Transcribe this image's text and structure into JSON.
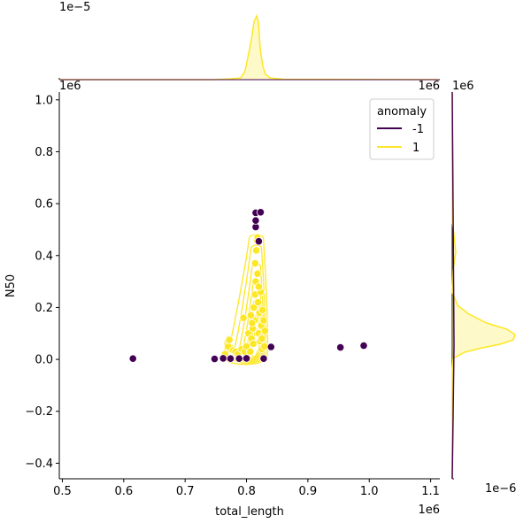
{
  "chart_data": {
    "type": "scatter",
    "subtype": "jointplot-kde-scatter",
    "xlabel": "total_length",
    "ylabel": "N50",
    "x_offset_label": "1e6",
    "y_offset_label": "1e6",
    "top_marginal_offset_label": "1e−5",
    "right_marginal_offset_label": "1e6",
    "right_marginal_bottom_offset_label": "1e−6",
    "xlim": [
      0.495,
      1.115
    ],
    "ylim": [
      -0.46,
      1.03
    ],
    "x_ticks": [
      0.5,
      0.6,
      0.7,
      0.8,
      0.9,
      1.0,
      1.1
    ],
    "x_tick_labels": [
      "0.5",
      "0.6",
      "0.7",
      "0.8",
      "0.9",
      "1.0",
      "1.1"
    ],
    "y_ticks": [
      -0.4,
      -0.2,
      0.0,
      0.2,
      0.4,
      0.6,
      0.8,
      1.0
    ],
    "y_tick_labels": [
      "−0.4",
      "−0.2",
      "0.0",
      "0.2",
      "0.4",
      "0.6",
      "0.8",
      "1.0"
    ],
    "grid": false,
    "legend": {
      "title": "anomaly",
      "placement": "top-right",
      "entries": [
        {
          "label": "-1",
          "color": "#440154"
        },
        {
          "label": "1",
          "color": "#fde725"
        }
      ]
    },
    "series": [
      {
        "name": "-1",
        "color": "#440154",
        "points": [
          [
            0.615,
            0.003
          ],
          [
            0.748,
            0.002
          ],
          [
            0.762,
            0.004
          ],
          [
            0.774,
            0.003
          ],
          [
            0.788,
            0.003
          ],
          [
            0.8,
            0.004
          ],
          [
            0.828,
            0.003
          ],
          [
            0.84,
            0.048
          ],
          [
            0.953,
            0.046
          ],
          [
            0.991,
            0.053
          ],
          [
            0.815,
            0.51
          ],
          [
            0.815,
            0.535
          ],
          [
            0.815,
            0.565
          ],
          [
            0.823,
            0.567
          ],
          [
            0.82,
            0.455
          ]
        ]
      },
      {
        "name": "1",
        "color": "#fde725",
        "points": [
          [
            0.765,
            0.02
          ],
          [
            0.77,
            0.05
          ],
          [
            0.772,
            0.075
          ],
          [
            0.778,
            0.035
          ],
          [
            0.782,
            0.03
          ],
          [
            0.786,
            0.02
          ],
          [
            0.792,
            0.04
          ],
          [
            0.795,
            0.16
          ],
          [
            0.797,
            0.03
          ],
          [
            0.8,
            0.05
          ],
          [
            0.803,
            0.1
          ],
          [
            0.806,
            0.03
          ],
          [
            0.808,
            0.08
          ],
          [
            0.81,
            0.12
          ],
          [
            0.811,
            0.06
          ],
          [
            0.812,
            0.2
          ],
          [
            0.813,
            0.15
          ],
          [
            0.814,
            0.25
          ],
          [
            0.815,
            0.3
          ],
          [
            0.816,
            0.42
          ],
          [
            0.817,
            0.46
          ],
          [
            0.818,
            0.33
          ],
          [
            0.819,
            0.22
          ],
          [
            0.82,
            0.1
          ],
          [
            0.821,
            0.18
          ],
          [
            0.822,
            0.07
          ],
          [
            0.823,
            0.26
          ],
          [
            0.824,
            0.13
          ],
          [
            0.825,
            0.04
          ],
          [
            0.826,
            0.19
          ],
          [
            0.827,
            0.09
          ],
          [
            0.828,
            0.15
          ],
          [
            0.829,
            0.05
          ],
          [
            0.83,
            0.11
          ],
          [
            0.818,
            0.47
          ],
          [
            0.814,
            0.37
          ],
          [
            0.82,
            0.28
          ],
          [
            0.809,
            0.14
          ],
          [
            0.807,
            0.17
          ],
          [
            0.825,
            0.08
          ]
        ]
      }
    ]
  }
}
